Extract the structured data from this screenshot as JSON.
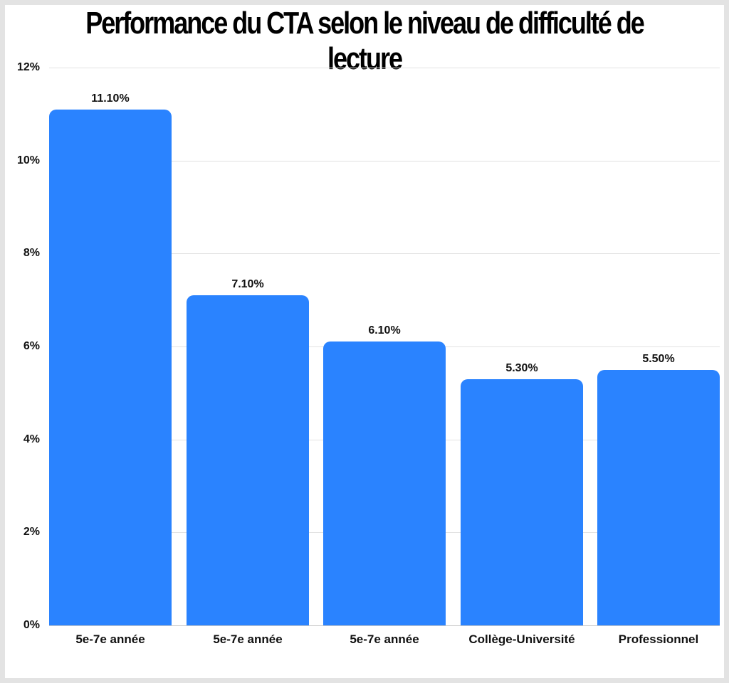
{
  "chart_data": {
    "type": "bar",
    "title": "Performance du CTA selon le niveau de difficulté de lecture",
    "categories": [
      "5e-7e année",
      "5e-7e année",
      "5e-7e année",
      "Collège-Université",
      "Professionnel"
    ],
    "values": [
      11.1,
      7.1,
      6.1,
      5.3,
      5.5
    ],
    "value_labels": [
      "11.10%",
      "7.10%",
      "6.10%",
      "5.30%",
      "5.50%"
    ],
    "xlabel": "",
    "ylabel": "",
    "ylim": [
      0,
      12
    ],
    "yticks": [
      "0%",
      "2%",
      "4%",
      "6%",
      "8%",
      "10%",
      "12%"
    ],
    "grid": true,
    "legend": "none",
    "bar_color": "#2a83ff"
  }
}
